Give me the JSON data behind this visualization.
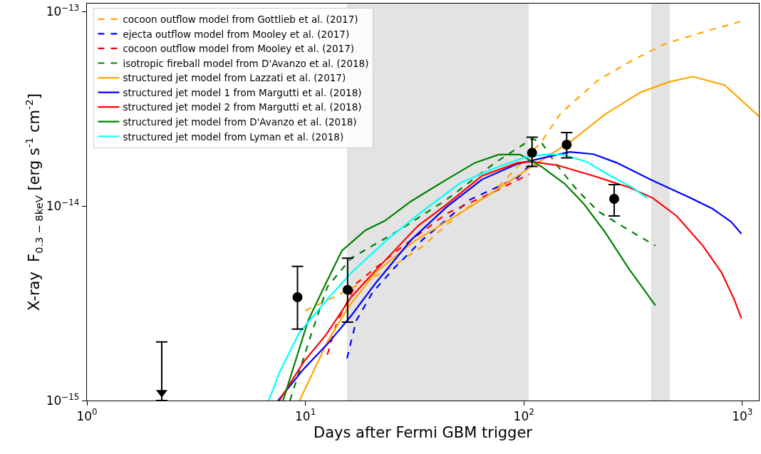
{
  "chart_data": {
    "type": "line",
    "xlabel": "Days after Fermi GBM trigger",
    "ylabel": "X-ray  F$_{0.3 − 8keV}$ [erg s$^{-1}$ cm$^{-2}$]",
    "log": "xy",
    "grid": false,
    "legend": "top left",
    "xlim": [
      1,
      1190
    ],
    "ylim": [
      1e-15,
      1.1e-13
    ],
    "xticks": [
      {
        "value": 1,
        "label": "10$^{0}$"
      },
      {
        "value": 10,
        "label": "10$^{1}$"
      },
      {
        "value": 100,
        "label": "10$^{2}$"
      },
      {
        "value": 1000,
        "label": "10$^{3}$"
      }
    ],
    "yticks": [
      {
        "value": 1e-15,
        "label": "10$^{−15}$"
      },
      {
        "value": 1e-14,
        "label": "10$^{−14}$"
      },
      {
        "value": 1e-13,
        "label": "10$^{−13}$"
      }
    ],
    "bands": [
      {
        "axis": "x",
        "from": 15.5,
        "to": 105,
        "color": "#e3e3e3"
      },
      {
        "axis": "x",
        "from": 382,
        "to": 465,
        "color": "#e3e3e3"
      }
    ],
    "series": [
      {
        "name": "cocoon outflow model from Gottlieb et al. (2017)",
        "color": "#ffa500",
        "line_style": "dashed",
        "x": [
          10,
          12.5,
          18,
          24.3,
          34.3,
          53.9,
          72.6,
          120,
          147,
          219,
          312,
          438,
          640,
          983
        ],
        "values": [
          2.9e-15,
          3.26e-15,
          4e-15,
          4.78e-15,
          6.2e-15,
          9.7e-15,
          1.18e-14,
          2.13e-14,
          2.99e-14,
          4.45e-14,
          5.6e-14,
          6.8e-14,
          7.76e-14,
          8.9e-14
        ]
      },
      {
        "name": "ejecta outflow model from Mooley et al. (2017)",
        "color": "#0000ff",
        "line_style": "dashed",
        "x": [
          15.5,
          17.1,
          20.3,
          25.4,
          34.3,
          56.8,
          93.6,
          106
        ],
        "values": [
          1.65e-15,
          2.58e-15,
          3.6e-15,
          4.78e-15,
          6.7e-15,
          1.08e-14,
          1.4e-14,
          1.62e-14
        ]
      },
      {
        "name": "cocoon outflow model from Mooley et al. (2017)",
        "color": "#ff0000",
        "line_style": "dashed",
        "x": [
          12.6,
          13.9,
          17.1,
          26.8,
          44.3,
          72.6,
          106
        ],
        "values": [
          1.72e-15,
          2.5e-15,
          4e-15,
          6e-15,
          9.15e-15,
          1.18e-14,
          1.46e-14
        ]
      },
      {
        "name": "isotropic fireball model from D'Avanzo et al. (2018)",
        "color": "#008000",
        "line_style": "dashed",
        "x": [
          8.5,
          10.6,
          12.6,
          16.2,
          26.8,
          44.3,
          72.6,
          109,
          120,
          143,
          175,
          219,
          266,
          400
        ],
        "values": [
          1e-15,
          2.17e-15,
          3.84e-15,
          5.4e-15,
          7.5e-15,
          1.08e-14,
          1.65e-14,
          2.22e-14,
          2.13e-14,
          1.6e-14,
          1.21e-14,
          9.4e-15,
          8.2e-15,
          6.25e-15
        ]
      },
      {
        "name": "structured jet model from Lazzati et al. (2017)",
        "color": "#ffa500",
        "line_style": "solid",
        "x": [
          9.4,
          12.6,
          15.8,
          20.9,
          31.1,
          56.8,
          109,
          162,
          236,
          344,
          465,
          595,
          830,
          1190
        ],
        "values": [
          1e-15,
          2e-15,
          3.05e-15,
          4.54e-15,
          6.53e-15,
          9.9e-15,
          1.6e-14,
          2.13e-14,
          2.97e-14,
          3.86e-14,
          4.36e-14,
          4.63e-14,
          4.19e-14,
          2.9e-14
        ]
      },
      {
        "name": "structured jet model 1 from Margutti et al. (2018)",
        "color": "#0000ff",
        "line_style": "solid",
        "x": [
          7.5,
          9.85,
          12.6,
          16.2,
          20.9,
          30.5,
          44.3,
          64.3,
          93.6,
          162,
          208,
          266,
          379,
          570,
          729,
          889,
          990
        ],
        "values": [
          1e-15,
          1.46e-15,
          1.95e-15,
          2.73e-15,
          4e-15,
          6.7e-15,
          9.9e-15,
          1.37e-14,
          1.65e-14,
          1.9e-14,
          1.85e-14,
          1.67e-14,
          1.37e-14,
          1.11e-14,
          9.7e-15,
          8.3e-15,
          7.2e-15
        ]
      },
      {
        "name": "structured jet model 2 from Margutti et al. (2018)",
        "color": "#ff0000",
        "line_style": "solid",
        "x": [
          7.6,
          9.85,
          12.4,
          16.2,
          20.9,
          32.7,
          44.3,
          64.3,
          93.6,
          109,
          143,
          208,
          302,
          389,
          500,
          660,
          804,
          917,
          990
        ],
        "values": [
          1e-15,
          1.59e-15,
          2.17e-15,
          3.4e-15,
          4.65e-15,
          7.9e-15,
          1.02e-14,
          1.43e-14,
          1.67e-14,
          1.69e-14,
          1.62e-14,
          1.43e-14,
          1.25e-14,
          1.1e-14,
          8.9e-15,
          6.25e-15,
          4.54e-15,
          3.32e-15,
          2.64e-15
        ]
      },
      {
        "name": "structured jet model from D'Avanzo et al. (2018)",
        "color": "#008000",
        "line_style": "solid",
        "x": [
          7.9,
          10.3,
          12.4,
          14.7,
          18.8,
          23.1,
          30.5,
          44.3,
          59.7,
          76.7,
          96,
          120,
          154,
          189,
          236,
          302,
          400
        ],
        "values": [
          1e-15,
          2.58e-15,
          4e-15,
          5.9e-15,
          7.5e-15,
          8.4e-15,
          1.06e-14,
          1.37e-14,
          1.67e-14,
          1.84e-14,
          1.84e-14,
          1.6e-14,
          1.3e-14,
          1.02e-14,
          7.3e-15,
          4.77e-15,
          3.08e-15
        ]
      },
      {
        "name": "structured jet model from Lyman et al. (2018)",
        "color": "#00ffff",
        "line_style": "solid",
        "x": [
          6.8,
          7.6,
          9.37,
          12.6,
          16.2,
          23.6,
          34.3,
          51.5,
          72.6,
          101,
          126,
          150,
          194,
          249,
          312,
          366
        ],
        "values": [
          1e-15,
          1.39e-15,
          2.23e-15,
          3.32e-15,
          4.54e-15,
          6.7e-15,
          9.4e-15,
          1.32e-14,
          1.56e-14,
          1.78e-14,
          1.84e-14,
          1.84e-14,
          1.69e-14,
          1.43e-14,
          1.25e-14,
          1.1e-14
        ]
      },
      {
        "type": "scatter",
        "color": "#000000",
        "marker": "circle",
        "x": [
          9.2,
          15.6,
          109,
          157,
          259
        ],
        "values": [
          3.4e-15,
          3.71e-15,
          1.88e-14,
          2.07e-14,
          1.09e-14
        ],
        "errors": [
          [
            2.33e-15,
            4.9e-15
          ],
          [
            2.53e-15,
            5.4e-15
          ],
          [
            1.6e-14,
            2.26e-14
          ],
          [
            1.77e-14,
            2.39e-14
          ],
          [
            8.9e-15,
            1.29e-14
          ]
        ]
      },
      {
        "type": "scatter",
        "color": "#000000",
        "marker": "triangle",
        "x": [
          2.2
        ],
        "values": [
          1.1e-15
        ],
        "errors": [
          [
            1e-15,
            2e-15
          ]
        ]
      }
    ]
  }
}
